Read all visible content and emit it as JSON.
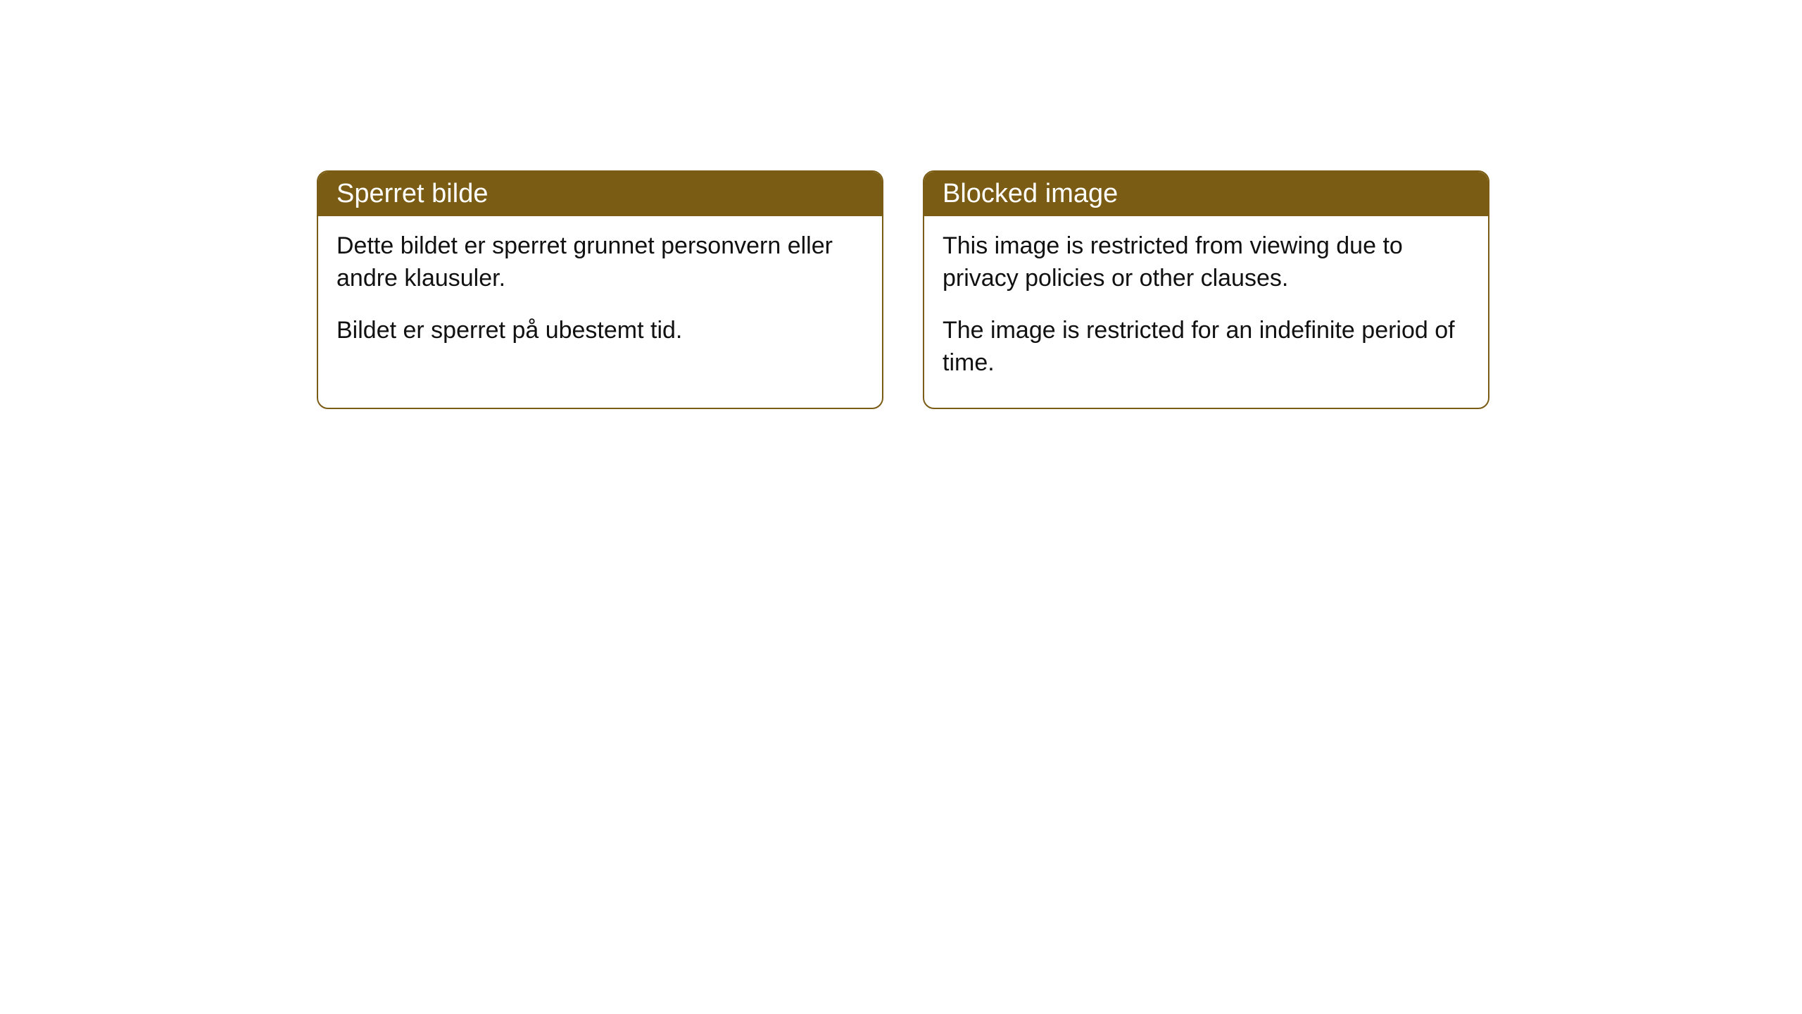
{
  "style": {
    "header_bg_color": "#7a5c14",
    "header_text_color": "#ffffff",
    "border_color": "#7a5c14",
    "body_text_color": "#111111",
    "background_color": "#ffffff",
    "border_radius": 16,
    "header_fontsize": 38,
    "body_fontsize": 34
  },
  "cards": {
    "left": {
      "title": "Sperret bilde",
      "p1": "Dette bildet er sperret grunnet personvern eller andre klausuler.",
      "p2": "Bildet er sperret på ubestemt tid."
    },
    "right": {
      "title": "Blocked image",
      "p1": "This image is restricted from viewing due to privacy policies or other clauses.",
      "p2": "The image is restricted for an indefinite period of time."
    }
  }
}
